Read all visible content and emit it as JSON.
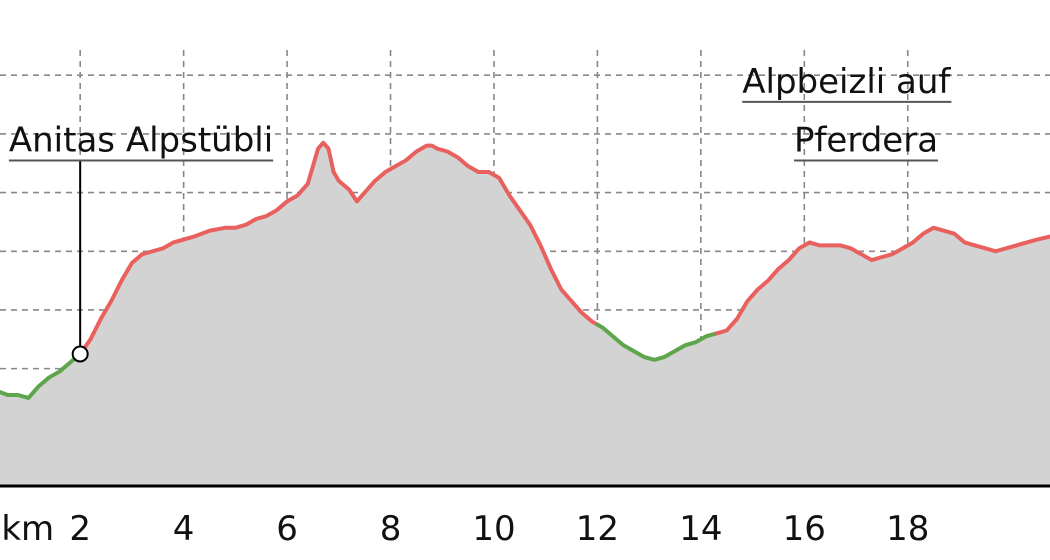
{
  "chart_data": {
    "type": "area",
    "title": "",
    "xlabel": "",
    "ylabel": "",
    "x_unit_label": "km",
    "xlim": [
      0.45,
      20.75
    ],
    "ylim": [
      0,
      7.6
    ],
    "grid": true,
    "x_ticks": [
      2,
      4,
      6,
      8,
      10,
      12,
      14,
      16,
      18
    ],
    "y_gridlines": [
      1,
      2,
      3,
      4,
      5,
      6,
      7
    ],
    "series": [
      {
        "x": [
          0.45,
          0.6,
          0.8,
          1.0,
          1.2,
          1.4,
          1.6,
          1.8,
          2.0,
          2.2,
          2.4,
          2.6,
          2.8,
          3.0,
          3.2,
          3.4,
          3.6,
          3.8,
          4.0,
          4.2,
          4.5,
          4.8,
          5.0,
          5.2,
          5.4,
          5.6,
          5.8,
          6.0,
          6.2,
          6.4,
          6.5,
          6.6,
          6.7,
          6.8,
          6.9,
          7.0,
          7.2,
          7.35,
          7.5,
          7.7,
          7.9,
          8.1,
          8.3,
          8.5,
          8.7,
          8.8,
          8.9,
          9.1,
          9.3,
          9.5,
          9.7,
          9.9,
          10.1,
          10.3,
          10.5,
          10.7,
          10.9,
          11.1,
          11.3,
          11.5,
          11.7,
          11.9,
          12.1,
          12.3,
          12.5,
          12.7,
          12.9,
          13.1,
          13.3,
          13.5,
          13.7,
          13.9,
          14.1,
          14.3,
          14.5,
          14.7,
          14.9,
          15.1,
          15.3,
          15.5,
          15.7,
          15.9,
          16.1,
          16.3,
          16.5,
          16.7,
          16.9,
          17.1,
          17.3,
          17.5,
          17.7,
          17.9,
          18.1,
          18.3,
          18.5,
          18.7,
          18.9,
          19.1,
          19.3,
          19.5,
          19.7,
          19.9,
          20.1,
          20.3,
          20.5,
          20.75
        ],
        "y": [
          1.6,
          1.55,
          1.55,
          1.5,
          1.7,
          1.85,
          1.95,
          2.1,
          2.25,
          2.5,
          2.85,
          3.15,
          3.5,
          3.8,
          3.95,
          4.0,
          4.05,
          4.15,
          4.2,
          4.25,
          4.35,
          4.4,
          4.4,
          4.45,
          4.55,
          4.6,
          4.7,
          4.85,
          4.95,
          5.15,
          5.45,
          5.75,
          5.85,
          5.75,
          5.35,
          5.2,
          5.05,
          4.85,
          5.0,
          5.2,
          5.35,
          5.45,
          5.55,
          5.7,
          5.8,
          5.8,
          5.75,
          5.7,
          5.6,
          5.45,
          5.35,
          5.35,
          5.25,
          4.95,
          4.7,
          4.45,
          4.1,
          3.7,
          3.35,
          3.15,
          2.95,
          2.8,
          2.7,
          2.55,
          2.4,
          2.3,
          2.2,
          2.15,
          2.2,
          2.3,
          2.4,
          2.45,
          2.55,
          2.6,
          2.65,
          2.85,
          3.15,
          3.35,
          3.5,
          3.7,
          3.85,
          4.05,
          4.15,
          4.1,
          4.1,
          4.1,
          4.05,
          3.95,
          3.85,
          3.9,
          3.95,
          4.05,
          4.15,
          4.3,
          4.4,
          4.35,
          4.3,
          4.15,
          4.1,
          4.05,
          4.0,
          4.05,
          4.1,
          4.15,
          4.2,
          4.25
        ]
      }
    ],
    "segments": [
      {
        "from": 0.45,
        "to": 2.0,
        "color": "#5da64b",
        "label": "green"
      },
      {
        "from": 2.0,
        "to": 12.0,
        "color": "#e8615f",
        "label": "red"
      },
      {
        "from": 12.0,
        "to": 14.3,
        "color": "#5da64b",
        "label": "green"
      },
      {
        "from": 14.3,
        "to": 20.75,
        "color": "#e8615f",
        "label": "red"
      }
    ],
    "annotations": [
      {
        "text": "Anitas Alpstübli",
        "x": 2.0,
        "marker": true,
        "label_row": 5.7,
        "anchor": "end"
      },
      {
        "text": "Alpbeizli auf",
        "x": 14.8,
        "marker": false,
        "label_row": 6.7,
        "anchor": "start"
      },
      {
        "text": "Pferdera",
        "x": 15.8,
        "marker": false,
        "label_row": 5.7,
        "anchor": "start"
      }
    ]
  },
  "colors": {
    "fill": "#d3d3d3",
    "grid": "#888888",
    "axis": "#000000",
    "marker_fill": "#ffffff",
    "marker_stroke": "#000000"
  }
}
